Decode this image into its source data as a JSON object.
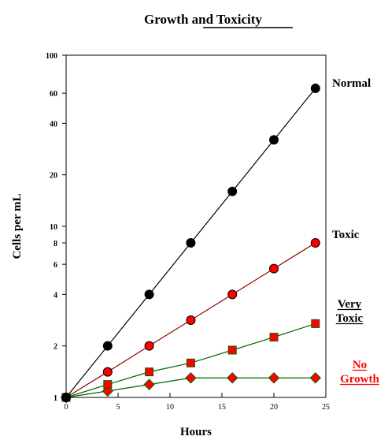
{
  "chart_data": {
    "type": "line",
    "title": "Growth and Toxicity",
    "xlabel": "Hours",
    "ylabel": "Cells per mL",
    "y_scale": "log",
    "xlim": [
      0,
      25
    ],
    "ylim": [
      1,
      100
    ],
    "x_ticks": [
      0,
      5,
      10,
      15,
      20,
      25
    ],
    "y_ticks": [
      1,
      2,
      4,
      6,
      8,
      10,
      20,
      40,
      60,
      100
    ],
    "grid": false,
    "series": [
      {
        "name": "Normal",
        "label_lines": [
          "Normal"
        ],
        "label_color": "#000000",
        "underline": false,
        "marker": "circle",
        "marker_color": "#000000",
        "line_color": "#000000",
        "x": [
          0,
          4,
          8,
          12,
          16,
          20,
          24
        ],
        "y": [
          1,
          2,
          4,
          8,
          16,
          32,
          64
        ]
      },
      {
        "name": "Toxic",
        "label_lines": [
          "Toxic"
        ],
        "label_color": "#000000",
        "underline": false,
        "marker": "circle",
        "marker_color": "#ff0000",
        "line_color": "#990000",
        "x": [
          0,
          4,
          8,
          12,
          16,
          20,
          24
        ],
        "y": [
          1,
          1.41,
          2,
          2.83,
          4,
          5.66,
          8
        ]
      },
      {
        "name": "Very Toxic",
        "label_lines": [
          "Very",
          "Toxic"
        ],
        "label_color": "#000000",
        "underline": true,
        "marker": "square",
        "marker_color": "#ff0000",
        "line_color": "#006600",
        "x": [
          0,
          4,
          8,
          12,
          16,
          20,
          24
        ],
        "y": [
          1,
          1.19,
          1.41,
          1.59,
          1.89,
          2.25,
          2.7
        ]
      },
      {
        "name": "No Growth",
        "label_lines": [
          "No",
          "Growth"
        ],
        "label_color": "#ff0000",
        "underline": true,
        "marker": "diamond",
        "marker_color": "#ff0000",
        "line_color": "#006600",
        "x": [
          0,
          4,
          8,
          12,
          16,
          20,
          24
        ],
        "y": [
          1,
          1.09,
          1.19,
          1.3,
          1.3,
          1.3,
          1.3
        ]
      }
    ]
  }
}
